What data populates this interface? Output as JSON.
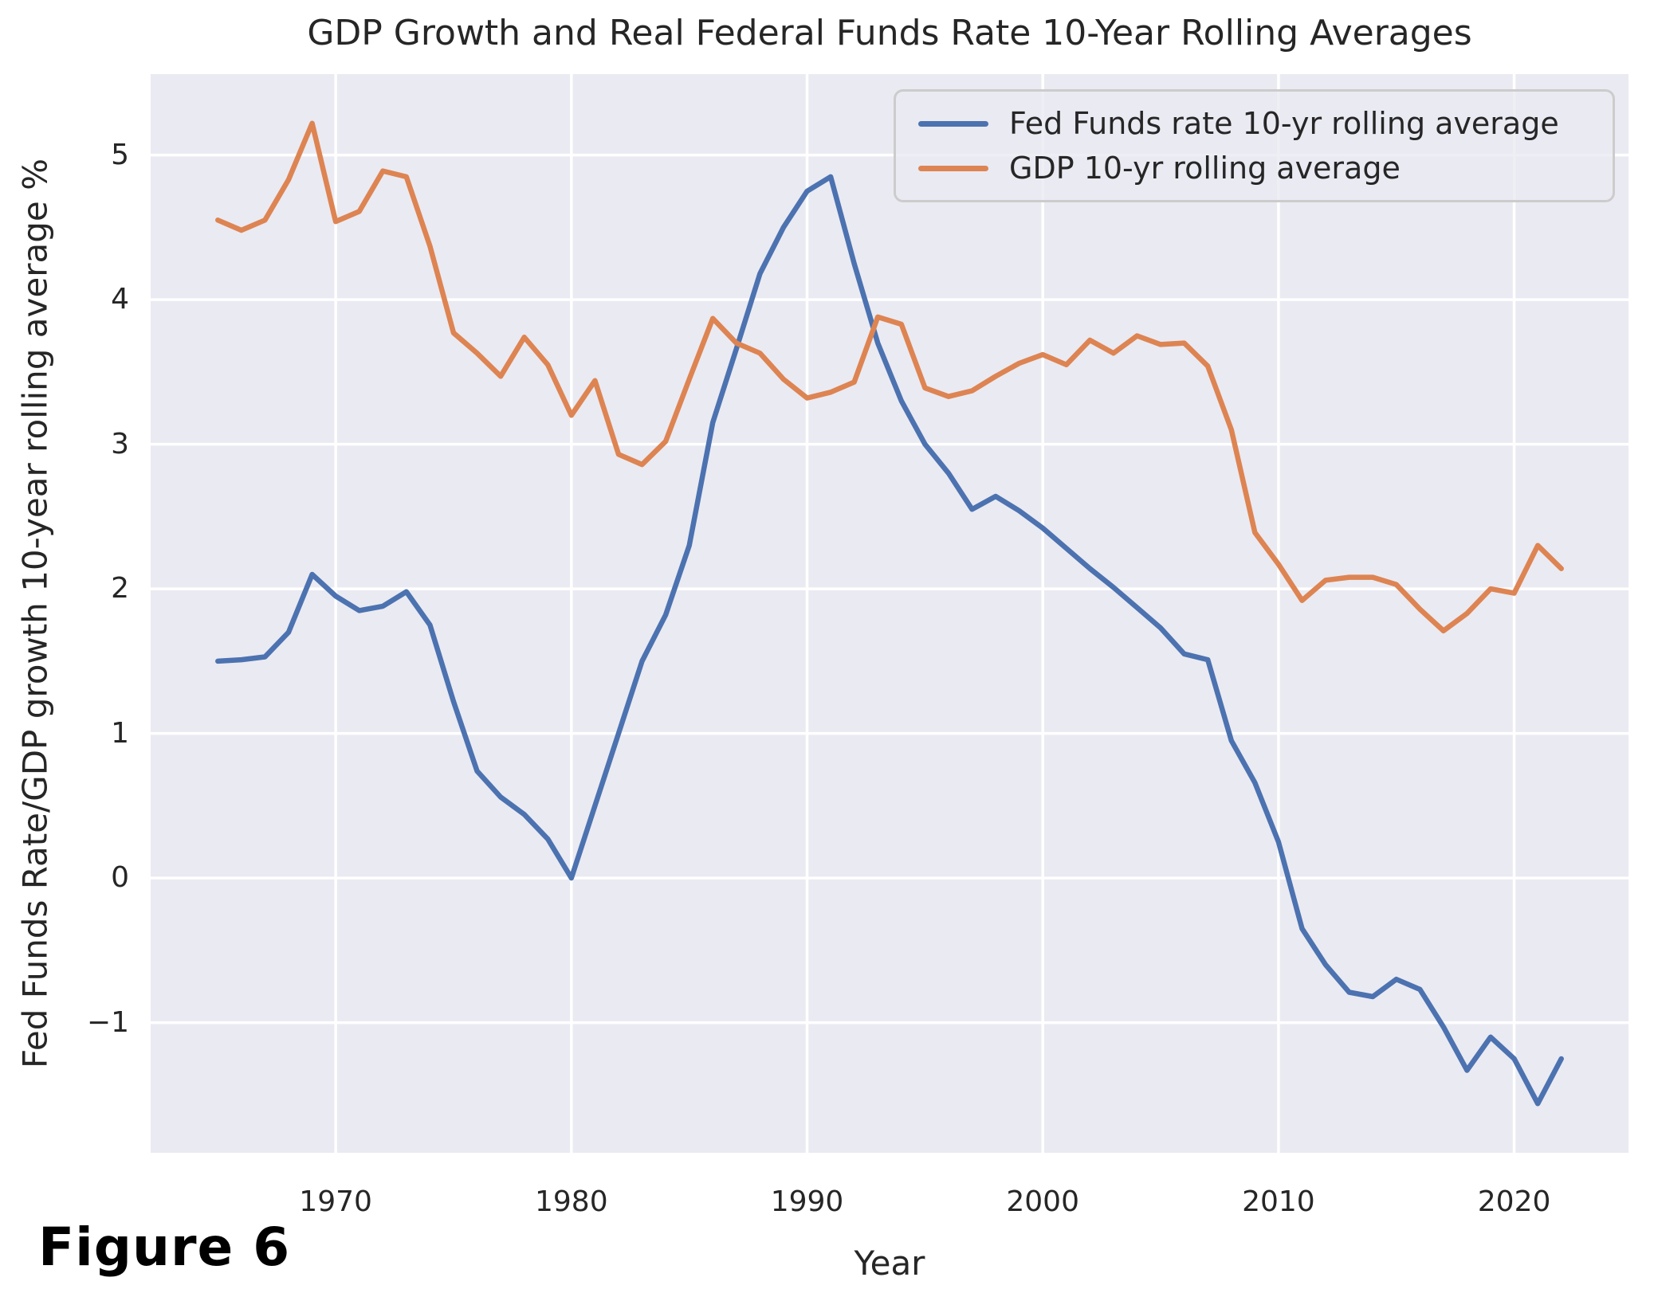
{
  "figure_label": "Figure 6",
  "chart_data": {
    "type": "line",
    "title": "GDP Growth and Real Federal Funds Rate 10-Year Rolling Averages",
    "xlabel": "Year",
    "ylabel": "Fed Funds Rate/GDP growth 10-year rolling average %",
    "x": [
      1965,
      1966,
      1967,
      1968,
      1969,
      1970,
      1971,
      1972,
      1973,
      1974,
      1975,
      1976,
      1977,
      1978,
      1979,
      1980,
      1981,
      1982,
      1983,
      1984,
      1985,
      1986,
      1987,
      1988,
      1989,
      1990,
      1991,
      1992,
      1993,
      1994,
      1995,
      1996,
      1997,
      1998,
      1999,
      2000,
      2001,
      2002,
      2003,
      2004,
      2005,
      2006,
      2007,
      2008,
      2009,
      2010,
      2011,
      2012,
      2013,
      2014,
      2015,
      2016,
      2017,
      2018,
      2019,
      2020,
      2021,
      2022
    ],
    "series": [
      {
        "name": "Fed Funds rate 10-yr rolling average",
        "color": "#4C72B0",
        "values": [
          1.5,
          1.51,
          1.53,
          1.7,
          2.1,
          1.95,
          1.85,
          1.88,
          1.98,
          1.75,
          1.22,
          0.74,
          0.56,
          0.44,
          0.27,
          0.0,
          0.5,
          1.0,
          1.5,
          1.82,
          2.3,
          3.15,
          3.66,
          4.18,
          4.5,
          4.75,
          4.85,
          4.25,
          3.7,
          3.3,
          3.0,
          2.8,
          2.55,
          2.64,
          2.54,
          2.42,
          2.28,
          2.14,
          2.01,
          1.87,
          1.73,
          1.55,
          1.51,
          0.95,
          0.66,
          0.25,
          -0.35,
          -0.6,
          -0.79,
          -0.82,
          -0.7,
          -0.77,
          -1.03,
          -1.33,
          -1.1,
          -1.25,
          -1.56,
          -1.25
        ]
      },
      {
        "name": "GDP 10-yr rolling average",
        "color": "#DD8452",
        "values": [
          4.55,
          4.48,
          4.55,
          4.83,
          5.22,
          4.54,
          4.61,
          4.89,
          4.85,
          4.37,
          3.77,
          3.63,
          3.47,
          3.74,
          3.55,
          3.2,
          3.44,
          2.93,
          2.86,
          3.02,
          3.45,
          3.87,
          3.7,
          3.63,
          3.45,
          3.32,
          3.36,
          3.43,
          3.88,
          3.83,
          3.39,
          3.33,
          3.37,
          3.47,
          3.56,
          3.62,
          3.55,
          3.72,
          3.63,
          3.75,
          3.69,
          3.7,
          3.54,
          3.1,
          2.39,
          2.17,
          1.92,
          2.06,
          2.08,
          2.08,
          2.03,
          1.86,
          1.71,
          1.83,
          2.0,
          1.97,
          2.3,
          2.14
        ]
      }
    ],
    "xlim": [
      1962.15,
      2024.85
    ],
    "ylim": [
      -1.9,
      5.56
    ],
    "x_ticks": [
      1970,
      1980,
      1990,
      2000,
      2010,
      2020
    ],
    "y_ticks": [
      -1,
      0,
      1,
      2,
      3,
      4,
      5
    ],
    "grid": true,
    "legend_position": "upper right",
    "plot_bg_color": "#EAEAF2",
    "grid_color": "#FFFFFF",
    "text_color": "#262626"
  }
}
